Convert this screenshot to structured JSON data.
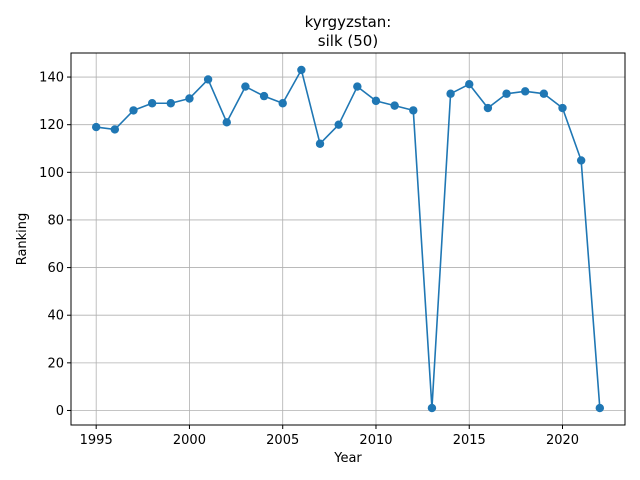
{
  "chart_data": {
    "type": "line",
    "title_line1": "kyrgyzstan:",
    "title_line2": "silk (50)",
    "xlabel": "Year",
    "ylabel": "Ranking",
    "xlim": [
      1993.65,
      2023.35
    ],
    "ylim": [
      -6.1,
      150.1
    ],
    "xticks": [
      1995,
      2000,
      2005,
      2010,
      2015,
      2020
    ],
    "yticks": [
      0,
      20,
      40,
      60,
      80,
      100,
      120,
      140
    ],
    "grid": true,
    "color": "#1f77b4",
    "series": [
      {
        "x": [
          1995,
          1996,
          1997,
          1998,
          1999,
          2000,
          2001,
          2002,
          2003,
          2004,
          2005,
          2006,
          2007,
          2008,
          2009,
          2010,
          2011,
          2012,
          2013,
          2014,
          2015,
          2016,
          2017,
          2018,
          2019,
          2020,
          2021,
          2022
        ],
        "y": [
          119,
          118,
          126,
          129,
          129,
          131,
          139,
          121,
          136,
          132,
          129,
          143,
          112,
          120,
          136,
          130,
          128,
          126,
          1,
          133,
          137,
          127,
          133,
          134,
          133,
          127,
          105,
          1
        ]
      }
    ]
  }
}
